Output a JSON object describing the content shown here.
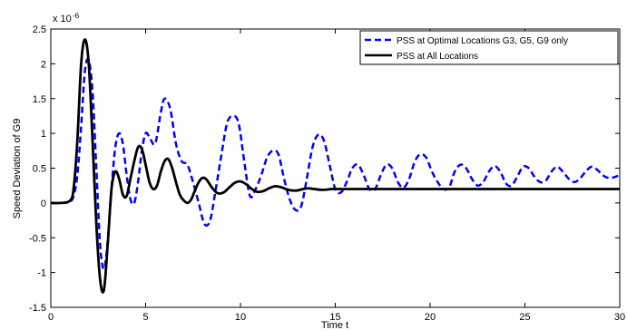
{
  "chart_data": {
    "type": "line",
    "title": "",
    "xlabel": "Time t",
    "ylabel": "Speed Deviation of G9",
    "y_multiplier_label": "x 10",
    "y_multiplier_exponent": "-6",
    "xlim": [
      0,
      30
    ],
    "ylim": [
      -1.5,
      2.5
    ],
    "xticks": [
      "0",
      "5",
      "10",
      "15",
      "20",
      "25",
      "30"
    ],
    "yticks": [
      "-1.5",
      "-1",
      "-0.5",
      "0",
      "0.5",
      "1",
      "1.5",
      "2",
      "2.5"
    ],
    "grid": false,
    "legend_position": "top-right",
    "series": [
      {
        "name": "PSS at Optimal Locations G3, G5, G9 only",
        "color": "#0000ff",
        "style": "dashed",
        "x": [
          0,
          0.5,
          1.0,
          1.2,
          1.4,
          1.6,
          1.8,
          2.0,
          2.2,
          2.4,
          2.6,
          2.8,
          3.0,
          3.2,
          3.4,
          3.6,
          3.8,
          4.0,
          4.2,
          4.4,
          4.6,
          4.8,
          5.0,
          5.2,
          5.5,
          5.8,
          6.0,
          6.3,
          6.6,
          6.9,
          7.2,
          7.5,
          7.8,
          8.1,
          8.4,
          8.7,
          9.0,
          9.3,
          9.6,
          9.9,
          10.2,
          10.5,
          10.8,
          11.1,
          11.4,
          11.7,
          12.0,
          12.3,
          12.6,
          12.9,
          13.2,
          13.5,
          13.8,
          14.1,
          14.4,
          14.7,
          15.0,
          15.3,
          15.6,
          15.9,
          16.2,
          16.5,
          16.8,
          17.1,
          17.4,
          17.7,
          18.0,
          18.3,
          18.6,
          18.9,
          19.2,
          19.5,
          19.8,
          20.1,
          20.4,
          20.7,
          21.0,
          21.3,
          21.6,
          21.9,
          22.2,
          22.5,
          22.8,
          23.1,
          23.4,
          23.7,
          24.0,
          24.3,
          24.6,
          24.9,
          25.2,
          25.5,
          25.8,
          26.1,
          26.4,
          26.7,
          27.0,
          27.3,
          27.6,
          27.9,
          28.2,
          28.5,
          28.8,
          29.1,
          29.4,
          29.7,
          30.0
        ],
        "y": [
          0,
          0.0,
          0.02,
          0.1,
          0.4,
          1.1,
          1.9,
          2.05,
          1.6,
          0.5,
          -0.6,
          -0.95,
          -0.55,
          0.2,
          0.8,
          1.0,
          0.85,
          0.4,
          0.05,
          0.0,
          0.3,
          0.75,
          1.0,
          0.95,
          0.85,
          1.3,
          1.5,
          1.35,
          0.85,
          0.6,
          0.55,
          0.3,
          0.0,
          -0.3,
          -0.25,
          0.2,
          0.7,
          1.15,
          1.25,
          1.15,
          0.6,
          0.1,
          0.2,
          0.4,
          0.65,
          0.75,
          0.7,
          0.35,
          0.05,
          -0.1,
          -0.05,
          0.35,
          0.8,
          0.98,
          0.9,
          0.55,
          0.2,
          0.15,
          0.3,
          0.5,
          0.55,
          0.4,
          0.2,
          0.2,
          0.4,
          0.55,
          0.5,
          0.3,
          0.22,
          0.35,
          0.6,
          0.7,
          0.65,
          0.45,
          0.3,
          0.2,
          0.22,
          0.45,
          0.55,
          0.5,
          0.35,
          0.25,
          0.3,
          0.45,
          0.53,
          0.45,
          0.28,
          0.25,
          0.38,
          0.52,
          0.5,
          0.38,
          0.3,
          0.32,
          0.45,
          0.52,
          0.45,
          0.35,
          0.3,
          0.35,
          0.45,
          0.52,
          0.48,
          0.4,
          0.36,
          0.37,
          0.4
        ]
      },
      {
        "name": "PSS at All Locations",
        "color": "#000000",
        "style": "solid",
        "x": [
          0,
          0.5,
          1.0,
          1.2,
          1.4,
          1.6,
          1.8,
          2.0,
          2.2,
          2.4,
          2.6,
          2.8,
          3.0,
          3.2,
          3.4,
          3.6,
          3.8,
          4.0,
          4.2,
          4.4,
          4.6,
          4.8,
          5.0,
          5.2,
          5.4,
          5.6,
          5.8,
          6.0,
          6.2,
          6.4,
          6.6,
          6.8,
          7.0,
          7.2,
          7.4,
          7.6,
          7.8,
          8.0,
          8.2,
          8.5,
          8.8,
          9.1,
          9.4,
          9.7,
          10.0,
          10.3,
          10.6,
          10.9,
          11.2,
          11.5,
          11.8,
          12.1,
          12.4,
          12.7,
          13.0,
          13.3,
          13.6,
          13.9,
          14.2,
          14.5,
          14.8,
          15.1,
          15.4,
          15.7,
          16.0,
          17.0,
          18.0,
          19.0,
          20.0,
          22.0,
          25.0,
          28.0,
          30.0
        ],
        "y": [
          0,
          0.0,
          0.03,
          0.2,
          0.9,
          2.0,
          2.35,
          2.0,
          0.9,
          -0.3,
          -1.1,
          -1.25,
          -0.6,
          0.2,
          0.45,
          0.35,
          0.12,
          0.1,
          0.35,
          0.6,
          0.8,
          0.78,
          0.55,
          0.3,
          0.2,
          0.25,
          0.45,
          0.6,
          0.63,
          0.5,
          0.3,
          0.12,
          0.04,
          0.0,
          0.05,
          0.18,
          0.3,
          0.36,
          0.34,
          0.22,
          0.14,
          0.15,
          0.22,
          0.29,
          0.31,
          0.27,
          0.2,
          0.16,
          0.17,
          0.21,
          0.24,
          0.23,
          0.2,
          0.18,
          0.18,
          0.2,
          0.21,
          0.2,
          0.19,
          0.19,
          0.2,
          0.2,
          0.2,
          0.2,
          0.2,
          0.2,
          0.2,
          0.2,
          0.2,
          0.2,
          0.2,
          0.2,
          0.2
        ]
      }
    ]
  }
}
